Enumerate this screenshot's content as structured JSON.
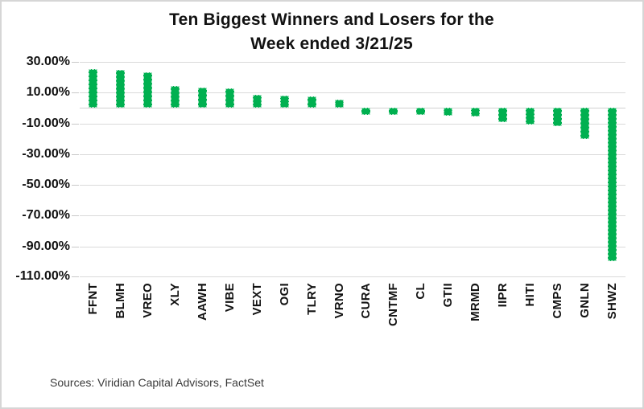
{
  "title": {
    "line1": "Ten Biggest Winners and Losers for the",
    "line2": "Week ended 3/21/25"
  },
  "source_note": "Sources: Viridian Capital Advisors, FactSet",
  "colors": {
    "bar": "#00b050",
    "gridline": "#dadada",
    "text": "#121212"
  },
  "chart_data": {
    "type": "bar",
    "title": "Ten Biggest Winners and Losers for the Week ended 3/21/25",
    "categories": [
      "FFNT",
      "BLMH",
      "VREO",
      "XLY",
      "AAWH",
      "VIBE",
      "VEXT",
      "OGI",
      "TLRY",
      "VRNO",
      "CURA",
      "CNTMF",
      "CL",
      "GTII",
      "MRMD",
      "IIPR",
      "HITI",
      "CMPS",
      "GNLN",
      "SHWZ"
    ],
    "values": [
      25.4,
      25.0,
      23.4,
      14.2,
      13.1,
      12.8,
      8.8,
      7.9,
      7.7,
      5.4,
      -4.3,
      -4.5,
      -4.7,
      -5.2,
      -5.4,
      -9.1,
      -10.6,
      -11.7,
      -19.9,
      -99.8
    ],
    "value_unit": "%",
    "xlabel": "",
    "ylabel": "",
    "ylim": [
      -110,
      30
    ],
    "yticks": [
      30,
      10,
      -10,
      -30,
      -50,
      -70,
      -90,
      -110
    ],
    "ytick_labels": [
      "30.00%",
      "10.00%",
      "-10.00%",
      "-30.00%",
      "-50.00%",
      "-70.00%",
      "-90.00%",
      "-110.00%"
    ],
    "grid": true,
    "legend": false
  }
}
